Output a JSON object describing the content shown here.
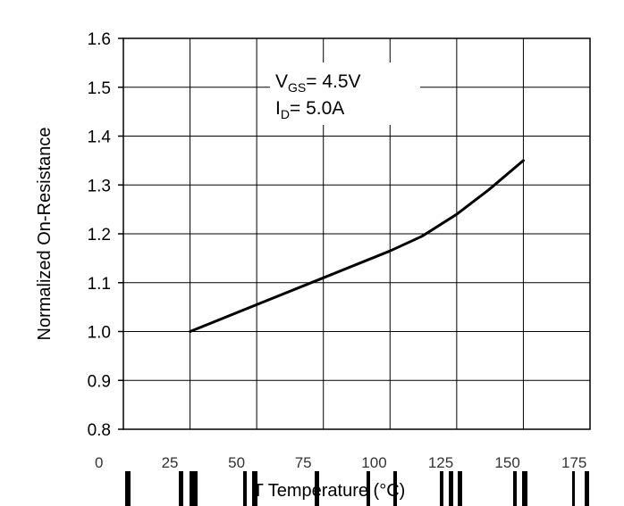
{
  "chart_data": {
    "type": "line",
    "ylabel": "Normalized On-Resistance",
    "xlabel": "T Temperature (°C)",
    "ylim": [
      0.8,
      1.6
    ],
    "xlim": [
      0,
      175
    ],
    "y_ticks": [
      "1.6",
      "1.5",
      "1.4",
      "1.3",
      "1.2",
      "1.1",
      "1.0",
      "0.9",
      "0.8"
    ],
    "x_ticks": [
      "0",
      "25",
      "50",
      "75",
      "100",
      "125",
      "150",
      "175"
    ],
    "grid": true,
    "annotation": {
      "line1_main": "V",
      "line1_sub": "GS",
      "line1_rest": "= 4.5V",
      "line2_main": "I",
      "line2_sub": "D",
      "line2_rest": "= 5.0A"
    },
    "series": [
      {
        "x": [
          25,
          50,
          75,
          100,
          112,
          125,
          137,
          150
        ],
        "y": [
          1.0,
          1.055,
          1.11,
          1.165,
          1.195,
          1.24,
          1.29,
          1.35
        ]
      }
    ]
  }
}
